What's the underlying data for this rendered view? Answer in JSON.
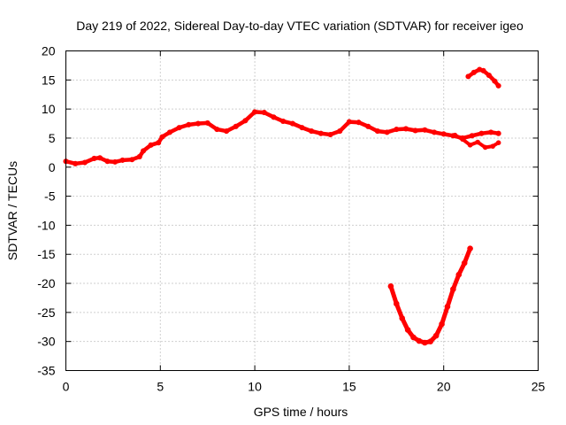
{
  "chart_data": {
    "type": "scatter",
    "title": "Day 219 of 2022, Sidereal Day-to-day VTEC variation (SDTVAR) for receiver igeo",
    "xlabel": "GPS time / hours",
    "ylabel": "SDTVAR / TECUs",
    "xlim": [
      0,
      25
    ],
    "ylim": [
      -35,
      20
    ],
    "xticks": [
      0,
      5,
      10,
      15,
      20,
      25
    ],
    "yticks": [
      20,
      15,
      10,
      5,
      0,
      -5,
      -10,
      -15,
      -20,
      -25,
      -30,
      -35
    ],
    "grid": true,
    "color": "#ff0000",
    "series": [
      {
        "name": "main",
        "x": [
          0,
          0.5,
          1,
          1.5,
          1.8,
          2.2,
          2.6,
          3,
          3.5,
          3.9,
          4.1,
          4.5,
          4.9,
          5.1,
          5.5,
          6,
          6.5,
          7,
          7.5,
          8,
          8.5,
          9,
          9.5,
          10,
          10.5,
          11,
          11.5,
          12,
          12.5,
          13,
          13.5,
          14,
          14.5,
          15,
          15.5,
          16,
          16.5,
          17,
          17.5,
          18,
          18.5,
          19,
          19.5,
          20,
          20.5,
          21,
          21.5,
          22,
          22.5,
          22.9
        ],
        "y": [
          1,
          0.6,
          0.8,
          1.5,
          1.6,
          1.0,
          0.9,
          1.2,
          1.3,
          1.8,
          2.8,
          3.8,
          4.2,
          5.2,
          6.0,
          6.8,
          7.3,
          7.5,
          7.6,
          6.5,
          6.2,
          7.0,
          8.0,
          9.5,
          9.4,
          8.6,
          7.9,
          7.5,
          6.8,
          6.2,
          5.8,
          5.6,
          6.2,
          7.8,
          7.7,
          7.0,
          6.2,
          6.0,
          6.5,
          6.6,
          6.3,
          6.4,
          6.0,
          5.7,
          5.4,
          5.0,
          5.4,
          5.8,
          6.0,
          5.8
        ],
        "stroke_width": 4.5
      },
      {
        "name": "lower-branch",
        "x": [
          20.6,
          21.0,
          21.4,
          21.8,
          22.2,
          22.6,
          22.9
        ],
        "y": [
          5.5,
          4.8,
          3.8,
          4.3,
          3.4,
          3.6,
          4.2
        ],
        "stroke_width": 4
      },
      {
        "name": "upper-arc",
        "x": [
          21.3,
          21.6,
          21.9,
          22.1,
          22.4,
          22.7,
          22.9
        ],
        "y": [
          15.6,
          16.3,
          16.8,
          16.6,
          15.8,
          14.8,
          14.0
        ],
        "stroke_width": 4.5
      },
      {
        "name": "negative-dip",
        "x": [
          17.2,
          17.5,
          17.8,
          18.1,
          18.4,
          18.7,
          19.0,
          19.3,
          19.6,
          19.9,
          20.2,
          20.5,
          20.8,
          21.1,
          21.4
        ],
        "y": [
          -20.5,
          -23.5,
          -26,
          -28,
          -29.3,
          -29.9,
          -30.2,
          -30.0,
          -29.0,
          -27,
          -24,
          -21,
          -18.5,
          -16.5,
          -14
        ],
        "stroke_width": 5
      }
    ]
  }
}
